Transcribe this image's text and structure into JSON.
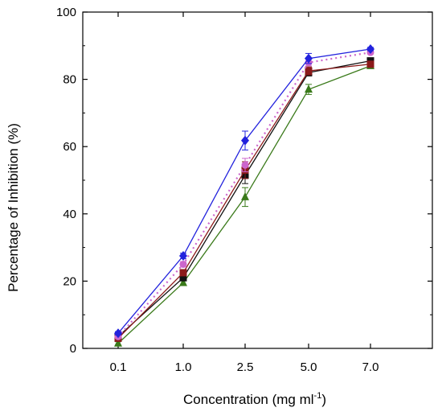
{
  "chart_data": {
    "type": "line",
    "title": "",
    "xlabel": "Concentration (mg ml",
    "xlabel_superscript": "-1",
    "xlabel_suffix": ")",
    "ylabel": "Percentage of Inhibition (%)",
    "categories": [
      "0.1",
      "1.0",
      "2.5",
      "5.0",
      "7.0"
    ],
    "ylim": [
      0,
      100
    ],
    "yticks": [
      "0",
      "20",
      "40",
      "60",
      "80",
      "100"
    ],
    "grid": false,
    "legend": "none",
    "series": [
      {
        "values": [
          4.5,
          27.5,
          61.8,
          86.2,
          89.0
        ],
        "errors": [
          0.5,
          0.8,
          2.8,
          1.5,
          0.5
        ],
        "color": "#2222dd",
        "marker": "diamond",
        "line": "solid"
      },
      {
        "values": [
          3.5,
          25.0,
          54.5,
          85.0,
          88.0
        ],
        "errors": [
          0.5,
          0.8,
          2.0,
          1.0,
          0.5
        ],
        "color": "#cc66cc",
        "marker": "circle",
        "line": "dotted"
      },
      {
        "values": [
          3.0,
          22.5,
          53.0,
          82.5,
          84.5
        ],
        "errors": [
          0.5,
          0.8,
          2.5,
          1.2,
          0.5
        ],
        "color": "#8b1a1a",
        "marker": "square",
        "line": "solid"
      },
      {
        "values": [
          3.5,
          21.0,
          51.5,
          82.0,
          85.5
        ],
        "errors": [
          0.5,
          0.8,
          2.5,
          1.0,
          0.5
        ],
        "color": "#111111",
        "marker": "square",
        "line": "solid"
      },
      {
        "values": [
          1.5,
          19.5,
          45.0,
          77.0,
          84.0
        ],
        "errors": [
          0.5,
          0.8,
          2.8,
          1.5,
          0.5
        ],
        "color": "#3a7a1a",
        "marker": "triangle",
        "line": "solid"
      }
    ]
  }
}
